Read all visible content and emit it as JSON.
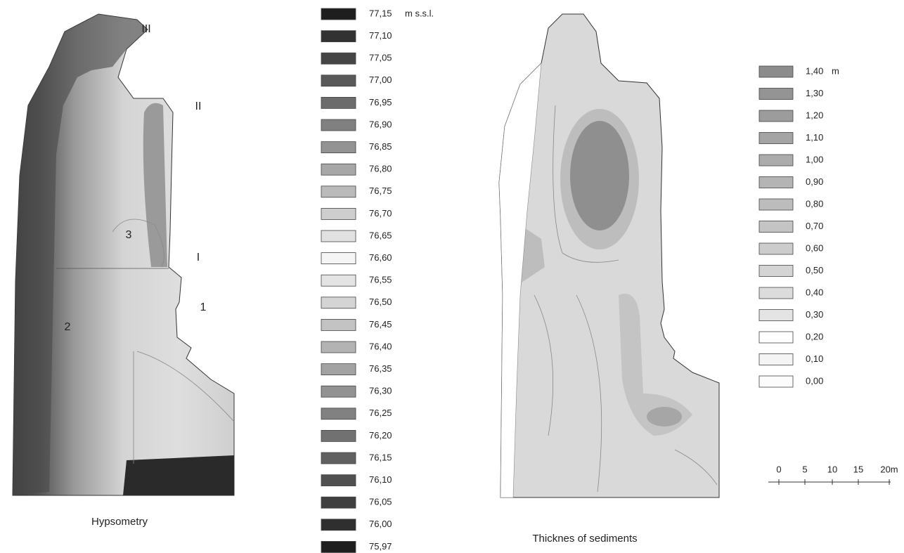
{
  "hypsometry": {
    "caption": "Hypsometry",
    "unit": "m s.s.l.",
    "map_labels": [
      "III",
      "II",
      "I",
      "1",
      "2",
      "3"
    ],
    "legend": [
      "77,15",
      "77,10",
      "77,05",
      "77,00",
      "76,95",
      "76,90",
      "76,85",
      "76,80",
      "76,75",
      "76,70",
      "76,65",
      "76,60",
      "76,55",
      "76,50",
      "76,45",
      "76,40",
      "76,35",
      "76,30",
      "76,25",
      "76,20",
      "76,15",
      "76,10",
      "76,05",
      "76,00",
      "75,97"
    ]
  },
  "sediments": {
    "caption": "Thicknes of sediments",
    "unit": "m",
    "legend": [
      "1,40",
      "1,30",
      "1,20",
      "1,10",
      "1,00",
      "0,90",
      "0,80",
      "0,70",
      "0,60",
      "0,50",
      "0,40",
      "0,30",
      "0,20",
      "0,10",
      "0,00"
    ]
  },
  "scale_bar": {
    "labels": [
      "0",
      "5",
      "10",
      "15",
      "20m"
    ]
  }
}
